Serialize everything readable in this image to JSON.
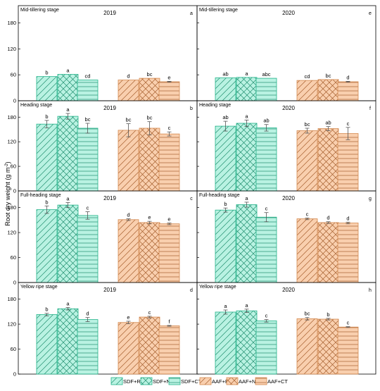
{
  "colors": {
    "sdf_fill": "#b9f2e2",
    "sdf_stroke": "#23b38a",
    "aaf_fill": "#f9cfae",
    "aaf_stroke": "#d4894f"
  },
  "y_axis_label": "Root dry weight (g m",
  "y_axis_label_sup": "-2",
  "y_axis_label_end": ")",
  "chart_data": {
    "type": "bar",
    "ylim": [
      0,
      220
    ],
    "y_ticks": [
      0,
      60,
      120,
      180
    ],
    "categories": [
      "SDF+RT",
      "SDF+NT",
      "SDF+CT",
      "AAF+RT",
      "AAF+NT",
      "AAF+CT"
    ],
    "legend": [
      "SDF+RT",
      "SDF+NT",
      "SDF+CT",
      "AAF+RT",
      "AAF+NT",
      "AAF+CT"
    ],
    "panels": [
      {
        "stage": "Mid-tillering stage",
        "year": "2019",
        "letter": "a",
        "values": [
          56,
          61,
          48,
          48,
          52,
          44
        ],
        "errors": [
          0,
          0,
          0,
          0,
          0,
          1
        ],
        "sig": [
          "b",
          "a",
          "cd",
          "d",
          "bc",
          "e"
        ]
      },
      {
        "stage": "Mid-tillering stage",
        "year": "2020",
        "letter": "e",
        "values": [
          53,
          54,
          52,
          47,
          49,
          44
        ],
        "errors": [
          0,
          0,
          0,
          0,
          0,
          1
        ],
        "sig": [
          "ab",
          "a",
          "abc",
          "cd",
          "bc",
          "d"
        ]
      },
      {
        "stage": "Heading stage",
        "year": "2019",
        "letter": "b",
        "values": [
          163,
          182,
          153,
          148,
          153,
          139
        ],
        "errors": [
          9,
          7,
          12,
          16,
          16,
          5
        ],
        "sig": [
          "b",
          "a",
          "bc",
          "bc",
          "bc",
          "c"
        ]
      },
      {
        "stage": "Heading stage",
        "year": "2020",
        "letter": "f",
        "values": [
          158,
          165,
          154,
          147,
          152,
          140
        ],
        "errors": [
          12,
          8,
          8,
          6,
          5,
          15
        ],
        "sig": [
          "ab",
          "a",
          "ab",
          "bc",
          "ab",
          "c"
        ]
      },
      {
        "stage": "Full-heading stage",
        "year": "2019",
        "letter": "c",
        "values": [
          175,
          186,
          161,
          151,
          144,
          141
        ],
        "errors": [
          9,
          6,
          9,
          2,
          3,
          2
        ],
        "sig": [
          "b",
          "a",
          "c",
          "d",
          "e",
          "e"
        ]
      },
      {
        "stage": "Full-heading stage",
        "year": "2020",
        "letter": "g",
        "values": [
          174,
          187,
          157,
          153,
          144,
          143
        ],
        "errors": [
          5,
          6,
          11,
          2,
          2,
          2
        ],
        "sig": [
          "b",
          "a",
          "c",
          "c",
          "d",
          "d"
        ]
      },
      {
        "stage": "Yellow ripe stage",
        "year": "2019",
        "letter": "d",
        "values": [
          143,
          157,
          131,
          124,
          137,
          116
        ],
        "errors": [
          3,
          3,
          5,
          3,
          2,
          1
        ],
        "sig": [
          "b",
          "a",
          "d",
          "e",
          "c",
          "f"
        ]
      },
      {
        "stage": "Yellow ripe stage",
        "year": "2020",
        "letter": "h",
        "values": [
          149,
          152,
          128,
          133,
          132,
          113
        ],
        "errors": [
          5,
          4,
          3,
          3,
          2,
          1
        ],
        "sig": [
          "a",
          "a",
          "c",
          "bc",
          "b",
          "c"
        ]
      }
    ]
  }
}
